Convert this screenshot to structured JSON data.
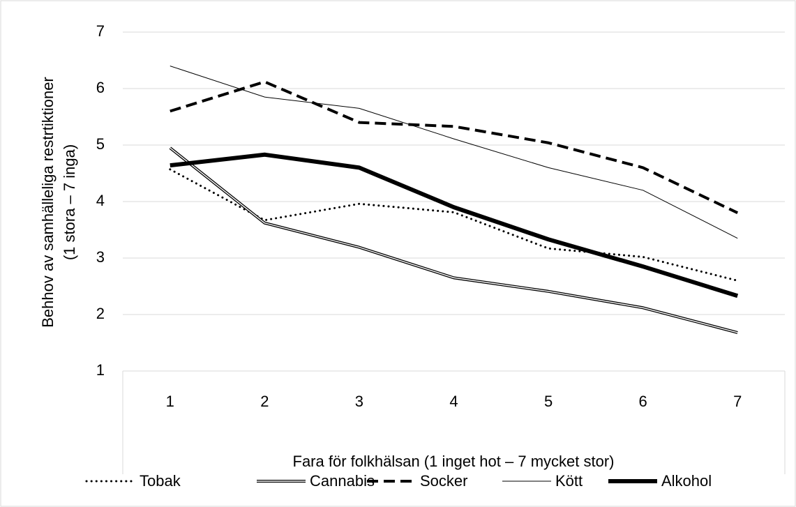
{
  "chart_data": {
    "type": "line",
    "categories": [
      "1",
      "2",
      "3",
      "4",
      "5",
      "6",
      "7"
    ],
    "series": [
      {
        "name": "Tobak",
        "color": "#000000",
        "line_style": "dotted",
        "line_width": 3,
        "values": [
          4.57,
          3.67,
          3.96,
          3.81,
          3.17,
          3.02,
          2.6
        ]
      },
      {
        "name": "Cannabis",
        "color": "#000000",
        "line_style": "double",
        "line_width": 4,
        "values": [
          4.95,
          3.62,
          3.19,
          2.65,
          2.41,
          2.12,
          1.68
        ]
      },
      {
        "name": "Socker",
        "color": "#000000",
        "line_style": "dashed",
        "line_width": 4,
        "values": [
          5.6,
          6.12,
          5.4,
          5.33,
          5.04,
          4.6,
          3.8
        ]
      },
      {
        "name": "Kött",
        "color": "#000000",
        "line_style": "solid",
        "line_width": 1,
        "values": [
          6.4,
          5.85,
          5.65,
          5.11,
          4.6,
          4.2,
          3.35
        ]
      },
      {
        "name": "Alkohol",
        "color": "#000000",
        "line_style": "solid",
        "line_width": 6,
        "values": [
          4.64,
          4.83,
          4.6,
          3.9,
          3.33,
          2.85,
          2.33
        ]
      }
    ],
    "ylabel": [
      "Behhov av samhälleliga restrtiktioner",
      "(1 stora – 7 inga)"
    ],
    "xlabel": "Fara för folkhälsan (1 inget hot – 7 mycket stor)",
    "ylim": [
      1,
      7
    ],
    "yticks": [
      1,
      2,
      3,
      4,
      5,
      6,
      7
    ],
    "grid": true,
    "legend": "bottom"
  }
}
